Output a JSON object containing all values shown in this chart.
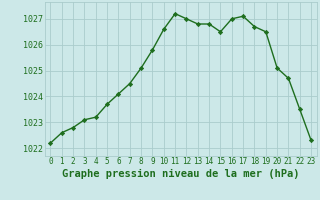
{
  "x": [
    0,
    1,
    2,
    3,
    4,
    5,
    6,
    7,
    8,
    9,
    10,
    11,
    12,
    13,
    14,
    15,
    16,
    17,
    18,
    19,
    20,
    21,
    22,
    23
  ],
  "y": [
    1022.2,
    1022.6,
    1022.8,
    1023.1,
    1023.2,
    1023.7,
    1024.1,
    1024.5,
    1025.1,
    1025.8,
    1026.6,
    1027.2,
    1027.0,
    1026.8,
    1026.8,
    1026.5,
    1027.0,
    1027.1,
    1026.7,
    1026.5,
    1025.1,
    1024.7,
    1023.5,
    1022.3
  ],
  "line_color": "#1e6e1e",
  "marker": "D",
  "marker_size": 2.2,
  "linewidth": 1.0,
  "bg_color": "#cce8e8",
  "grid_color": "#aacccc",
  "xlabel": "Graphe pression niveau de la mer (hPa)",
  "xlabel_fontsize": 7.5,
  "xlabel_fontweight": "bold",
  "xlabel_color": "#1e6e1e",
  "yticks": [
    1022,
    1023,
    1024,
    1025,
    1026,
    1027
  ],
  "ylim": [
    1021.7,
    1027.65
  ],
  "xlim": [
    -0.5,
    23.5
  ],
  "xtick_fontsize": 5.5,
  "ytick_fontsize": 6.0
}
